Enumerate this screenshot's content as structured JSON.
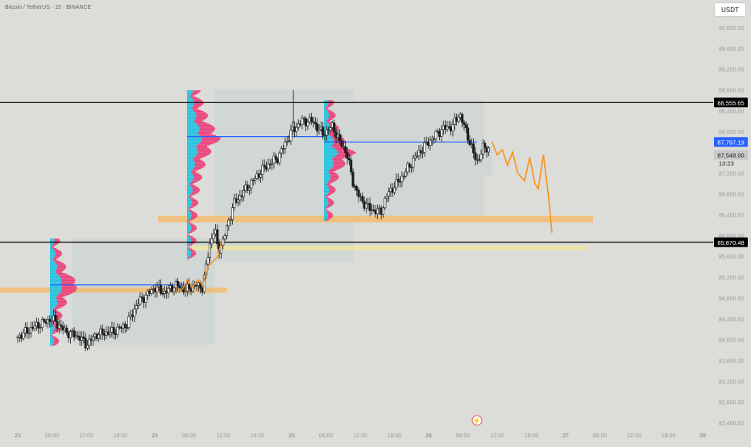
{
  "header": {
    "symbol_title": "Bitcoin / TetherUS · 15 · BINANCE",
    "currency": "USDT"
  },
  "colors": {
    "background": "#dcdcd8",
    "candle": "#1a1a1a",
    "level_line": "#000000",
    "poc_line": "#2962ff",
    "profile_cyan": "#22c3e0",
    "profile_pink": "#ec407a",
    "zone_orange": "#f5b964",
    "zone_yellow": "#f0e6a0",
    "projection": "#f7931a",
    "range_box": "#c9d4d2"
  },
  "price_axis": {
    "ticks": [
      "90,000.00",
      "89,600.00",
      "89,200.00",
      "88,800.00",
      "88,400.00",
      "88,000.00",
      "87,600.00",
      "87,200.00",
      "86,800.00",
      "86,400.00",
      "86,000.00",
      "85,600.00",
      "85,200.00",
      "84,800.00",
      "84,400.00",
      "84,000.00",
      "83,600.00",
      "83,200.00",
      "82,800.00",
      "82,400.00"
    ],
    "labels": {
      "resistance": "88,555.65",
      "blue_level": "87,797.19",
      "last_price": "87,548.00",
      "countdown": "13:23",
      "support": "85,870.48"
    }
  },
  "time_axis": {
    "ticks": [
      "23",
      "06:00",
      "12:00",
      "18:00",
      "24",
      "06:00",
      "12:00",
      "18:00",
      "25",
      "06:00",
      "12:00",
      "18:00",
      "26",
      "06:00",
      "12:00",
      "18:00",
      "27",
      "06:00",
      "12:00",
      "18:00",
      "28"
    ]
  },
  "chart_data": {
    "type": "candlestick",
    "symbol": "Bitcoin / TetherUS",
    "interval": "15",
    "exchange": "BINANCE",
    "ylim": [
      82400,
      90000
    ],
    "horizontal_levels": [
      88555.65,
      85870.48
    ],
    "poc_levels": [
      85050,
      87900,
      87797.19
    ],
    "price_path": [
      [
        0,
        84050
      ],
      [
        0.5,
        84250
      ],
      [
        1.0,
        84400
      ],
      [
        1.4,
        84150
      ],
      [
        1.8,
        84050
      ],
      [
        2.0,
        83900
      ],
      [
        2.3,
        84100
      ],
      [
        2.8,
        84150
      ],
      [
        3.2,
        84300
      ],
      [
        3.5,
        84700
      ],
      [
        4.0,
        85000
      ],
      [
        4.3,
        84900
      ],
      [
        4.6,
        85050
      ],
      [
        4.9,
        84950
      ],
      [
        5.2,
        85050
      ],
      [
        5.4,
        85000
      ],
      [
        5.6,
        85800
      ],
      [
        5.75,
        86150
      ],
      [
        5.85,
        85700
      ],
      [
        6.0,
        85900
      ],
      [
        6.3,
        86600
      ],
      [
        6.8,
        87000
      ],
      [
        7.2,
        87300
      ],
      [
        7.6,
        87500
      ],
      [
        8.0,
        88000
      ],
      [
        8.3,
        88200
      ],
      [
        8.6,
        88200
      ],
      [
        8.9,
        87950
      ],
      [
        9.2,
        88100
      ],
      [
        9.4,
        87800
      ],
      [
        9.6,
        87600
      ],
      [
        9.8,
        87000
      ],
      [
        10.0,
        86700
      ],
      [
        10.3,
        86500
      ],
      [
        10.6,
        86450
      ],
      [
        10.8,
        86800
      ],
      [
        11.2,
        87100
      ],
      [
        11.6,
        87500
      ],
      [
        12.0,
        87800
      ],
      [
        12.4,
        88050
      ],
      [
        12.7,
        88100
      ],
      [
        12.9,
        88350
      ],
      [
        13.2,
        87800
      ],
      [
        13.4,
        87400
      ],
      [
        13.6,
        87700
      ],
      [
        13.8,
        87650
      ]
    ],
    "projection_path": [
      [
        13.85,
        87800
      ],
      [
        14.0,
        87550
      ],
      [
        14.15,
        87650
      ],
      [
        14.3,
        87350
      ],
      [
        14.45,
        87600
      ],
      [
        14.6,
        87200
      ],
      [
        14.8,
        87050
      ],
      [
        14.95,
        87500
      ],
      [
        15.1,
        87000
      ],
      [
        15.2,
        86900
      ],
      [
        15.35,
        87550
      ],
      [
        15.5,
        86750
      ],
      [
        15.6,
        86050
      ]
    ],
    "zones": [
      {
        "from": 84900,
        "to": 85000
      },
      {
        "from": 86250,
        "to": 86380
      },
      {
        "from": 85720,
        "to": 85800
      }
    ]
  }
}
